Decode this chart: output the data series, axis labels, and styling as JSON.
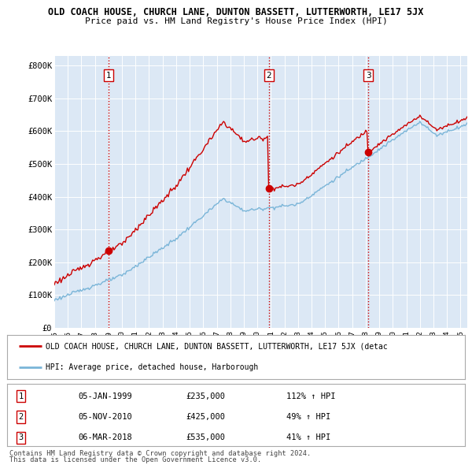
{
  "title": "OLD COACH HOUSE, CHURCH LANE, DUNTON BASSETT, LUTTERWORTH, LE17 5JX",
  "subtitle": "Price paid vs. HM Land Registry's House Price Index (HPI)",
  "ylabel_ticks": [
    "£0",
    "£100K",
    "£200K",
    "£300K",
    "£400K",
    "£500K",
    "£600K",
    "£700K",
    "£800K"
  ],
  "ytick_values": [
    0,
    100000,
    200000,
    300000,
    400000,
    500000,
    600000,
    700000,
    800000
  ],
  "ylim": [
    0,
    830000
  ],
  "xlim_start": 1995.0,
  "xlim_end": 2025.5,
  "sale_dates": [
    1999.02,
    2010.84,
    2018.18
  ],
  "sale_prices": [
    235000,
    425000,
    535000
  ],
  "sale_labels": [
    "1",
    "2",
    "3"
  ],
  "hpi_color": "#7ab5d8",
  "price_color": "#cc0000",
  "vline_color": "#cc0000",
  "plot_bg_color": "#dce8f5",
  "legend_entry1": "OLD COACH HOUSE, CHURCH LANE, DUNTON BASSETT, LUTTERWORTH, LE17 5JX (detac",
  "legend_entry2": "HPI: Average price, detached house, Harborough",
  "table_entries": [
    [
      "1",
      "05-JAN-1999",
      "£235,000",
      "112% ↑ HPI"
    ],
    [
      "2",
      "05-NOV-2010",
      "£425,000",
      "49% ↑ HPI"
    ],
    [
      "3",
      "06-MAR-2018",
      "£535,000",
      "41% ↑ HPI"
    ]
  ],
  "footnote1": "Contains HM Land Registry data © Crown copyright and database right 2024.",
  "footnote2": "This data is licensed under the Open Government Licence v3.0."
}
